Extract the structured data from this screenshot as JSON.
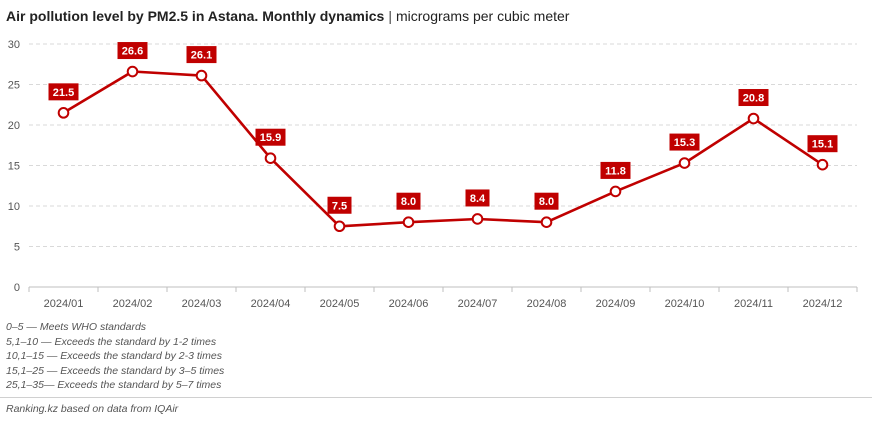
{
  "title": {
    "main": "Air pollution level by PM2.5 in Astana. Monthly dynamics",
    "separator": "|",
    "unit": "micrograms per cubic meter"
  },
  "chart_data": {
    "type": "line",
    "categories": [
      "2024/01",
      "2024/02",
      "2024/03",
      "2024/04",
      "2024/05",
      "2024/06",
      "2024/07",
      "2024/08",
      "2024/09",
      "2024/10",
      "2024/11",
      "2024/12"
    ],
    "values": [
      21.5,
      26.6,
      26.1,
      15.9,
      7.5,
      8.0,
      8.4,
      8.0,
      11.8,
      15.3,
      20.8,
      15.1
    ],
    "data_labels": [
      "21.5",
      "26.6",
      "26.1",
      "15.9",
      "7.5",
      "8.0",
      "8.4",
      "8.0",
      "11.8",
      "15.3",
      "20.8",
      "15.1"
    ],
    "ylim": [
      0,
      30
    ],
    "yticks": [
      0,
      5,
      10,
      15,
      20,
      25,
      30
    ],
    "grid": true,
    "line_color": "#c00000",
    "label_bg_color": "#c00000",
    "marker_fill": "#ffffff"
  },
  "notes": [
    "0–5 — Meets WHO standards",
    "5,1–10 — Exceeds the standard by 1-2 times",
    "10,1–15 — Exceeds the standard by 2-3 times",
    "15,1–25 — Exceeds the standard by 3–5 times",
    "25,1–35— Exceeds the standard by 5–7 times"
  ],
  "source": "Ranking.kz based on data from IQAir"
}
